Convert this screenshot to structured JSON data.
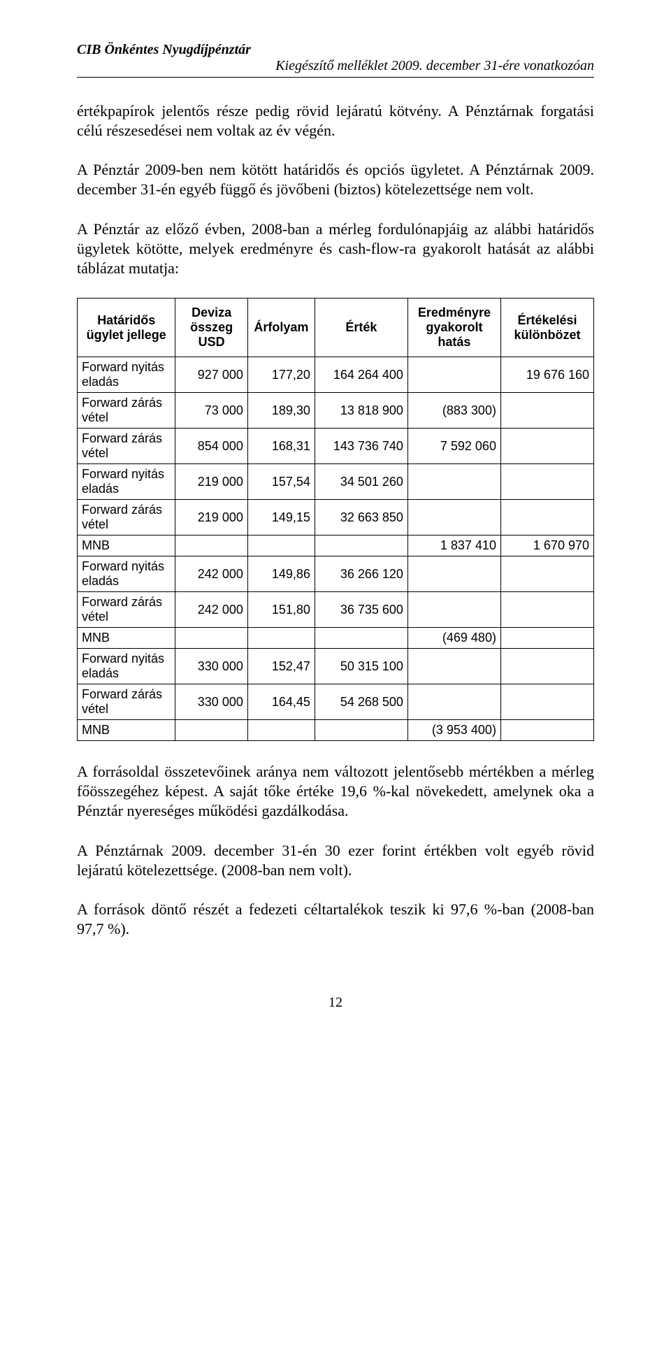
{
  "header": {
    "org": "CIB Önkéntes Nyugdíjpénztár",
    "doc": "Kiegészítő melléklet 2009. december 31-ére vonatkozóan"
  },
  "paragraphs": {
    "p1": "értékpapírok jelentős része pedig rövid lejáratú kötvény. A Pénztárnak forgatási célú részesedései nem voltak az év végén.",
    "p2": "A Pénztár 2009-ben nem kötött határidős és opciós ügyletet. A Pénztárnak 2009. december 31-én egyéb függő és jövőbeni (biztos) kötelezettsége nem volt.",
    "p3": "A Pénztár az előző évben, 2008-ban a mérleg fordulónapjáig az alábbi határidős ügyletek kötötte, melyek eredményre és cash-flow-ra gyakorolt hatását az alábbi táblázat mutatja:",
    "p4": "A forrásoldal összetevőinek aránya nem változott jelentősebb mértékben a mérleg főösszegéhez képest. A saját tőke értéke 19,6 %-kal növekedett, amelynek oka a Pénztár nyereséges működési gazdálkodása.",
    "p5": "A Pénztárnak 2009. december 31-én 30 ezer forint értékben volt egyéb rövid lejáratú kötelezettsége. (2008-ban nem volt).",
    "p6": "A források döntő részét a fedezeti céltartalékok teszik ki 97,6 %-ban (2008-ban 97,7 %)."
  },
  "table": {
    "headers": {
      "type": "Határidős ügylet jellege",
      "usd": "Deviza összeg USD",
      "rate": "Árfolyam",
      "value": "Érték",
      "effect": "Eredményre gyakorolt hatás",
      "diff": "Értékelési különbözet"
    },
    "groups": [
      {
        "rows": [
          {
            "type": "Forward nyitás eladás",
            "usd": "927 000",
            "rate": "177,20",
            "value": "164 264 400",
            "effect": "",
            "diff": "19 676 160"
          },
          {
            "type": "Forward zárás vétel",
            "usd": "73 000",
            "rate": "189,30",
            "value": "13 818 900",
            "effect": "(883 300)",
            "diff": ""
          },
          {
            "type": "Forward zárás vétel",
            "usd": "854 000",
            "rate": "168,31",
            "value": "143 736 740",
            "effect": "7 592 060",
            "diff": ""
          }
        ]
      },
      {
        "rows": [
          {
            "type": "Forward nyitás eladás",
            "usd": "219 000",
            "rate": "157,54",
            "value": "34 501 260",
            "effect": "",
            "diff": ""
          },
          {
            "type": "Forward zárás vétel",
            "usd": "219 000",
            "rate": "149,15",
            "value": "32 663 850",
            "effect": "",
            "diff": ""
          },
          {
            "type": "MNB",
            "usd": "",
            "rate": "",
            "value": "",
            "effect": "1 837 410",
            "diff": "1 670 970"
          }
        ]
      },
      {
        "rows": [
          {
            "type": "Forward nyitás eladás",
            "usd": "242 000",
            "rate": "149,86",
            "value": "36 266 120",
            "effect": "",
            "diff": ""
          },
          {
            "type": "Forward zárás vétel",
            "usd": "242 000",
            "rate": "151,80",
            "value": "36 735 600",
            "effect": "",
            "diff": ""
          },
          {
            "type": "MNB",
            "usd": "",
            "rate": "",
            "value": "",
            "effect": "(469 480)",
            "diff": ""
          }
        ]
      },
      {
        "rows": [
          {
            "type": "Forward nyitás eladás",
            "usd": "330 000",
            "rate": "152,47",
            "value": "50 315 100",
            "effect": "",
            "diff": ""
          },
          {
            "type": "Forward zárás vétel",
            "usd": "330 000",
            "rate": "164,45",
            "value": "54 268 500",
            "effect": "",
            "diff": ""
          },
          {
            "type": "MNB",
            "usd": "",
            "rate": "",
            "value": "",
            "effect": "(3 953 400)",
            "diff": ""
          }
        ]
      }
    ]
  },
  "page_number": "12"
}
